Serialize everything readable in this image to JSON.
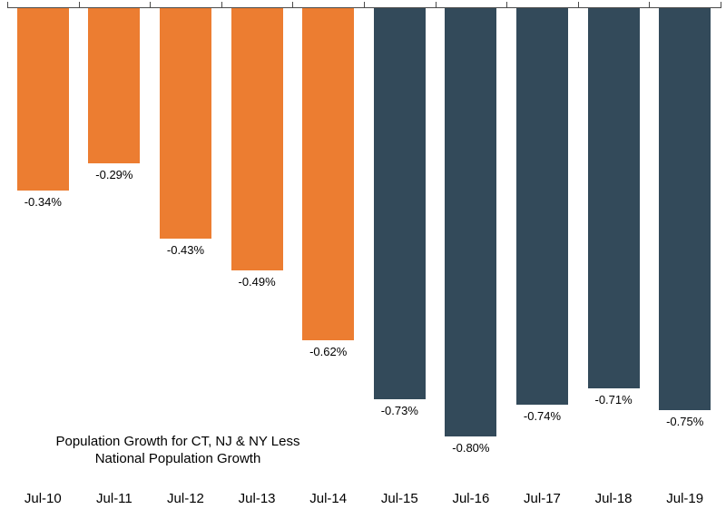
{
  "chart_data": {
    "type": "bar",
    "categories": [
      "Jul-10",
      "Jul-11",
      "Jul-12",
      "Jul-13",
      "Jul-14",
      "Jul-15",
      "Jul-16",
      "Jul-17",
      "Jul-18",
      "Jul-19"
    ],
    "values": [
      -0.34,
      -0.29,
      -0.43,
      -0.49,
      -0.62,
      -0.73,
      -0.8,
      -0.74,
      -0.71,
      -0.75
    ],
    "data_labels": [
      "-0.34%",
      "-0.29%",
      "-0.43%",
      "-0.49%",
      "-0.62%",
      "-0.73%",
      "-0.80%",
      "-0.74%",
      "-0.71%",
      "-0.75%"
    ],
    "title": "Population Growth for CT, NJ & NY Less National Population Growth",
    "title_lines": [
      "Population Growth for CT, NJ & NY Less",
      "National Population Growth"
    ],
    "xlabel": "",
    "ylabel": "",
    "ylim": [
      -0.85,
      0
    ],
    "baseline": "top",
    "grid": false,
    "legend": "none",
    "colors": {
      "highlight": "#EC7D31",
      "base": "#334A5A"
    },
    "color_groups": [
      "highlight",
      "highlight",
      "highlight",
      "highlight",
      "highlight",
      "base",
      "base",
      "base",
      "base",
      "base"
    ]
  }
}
